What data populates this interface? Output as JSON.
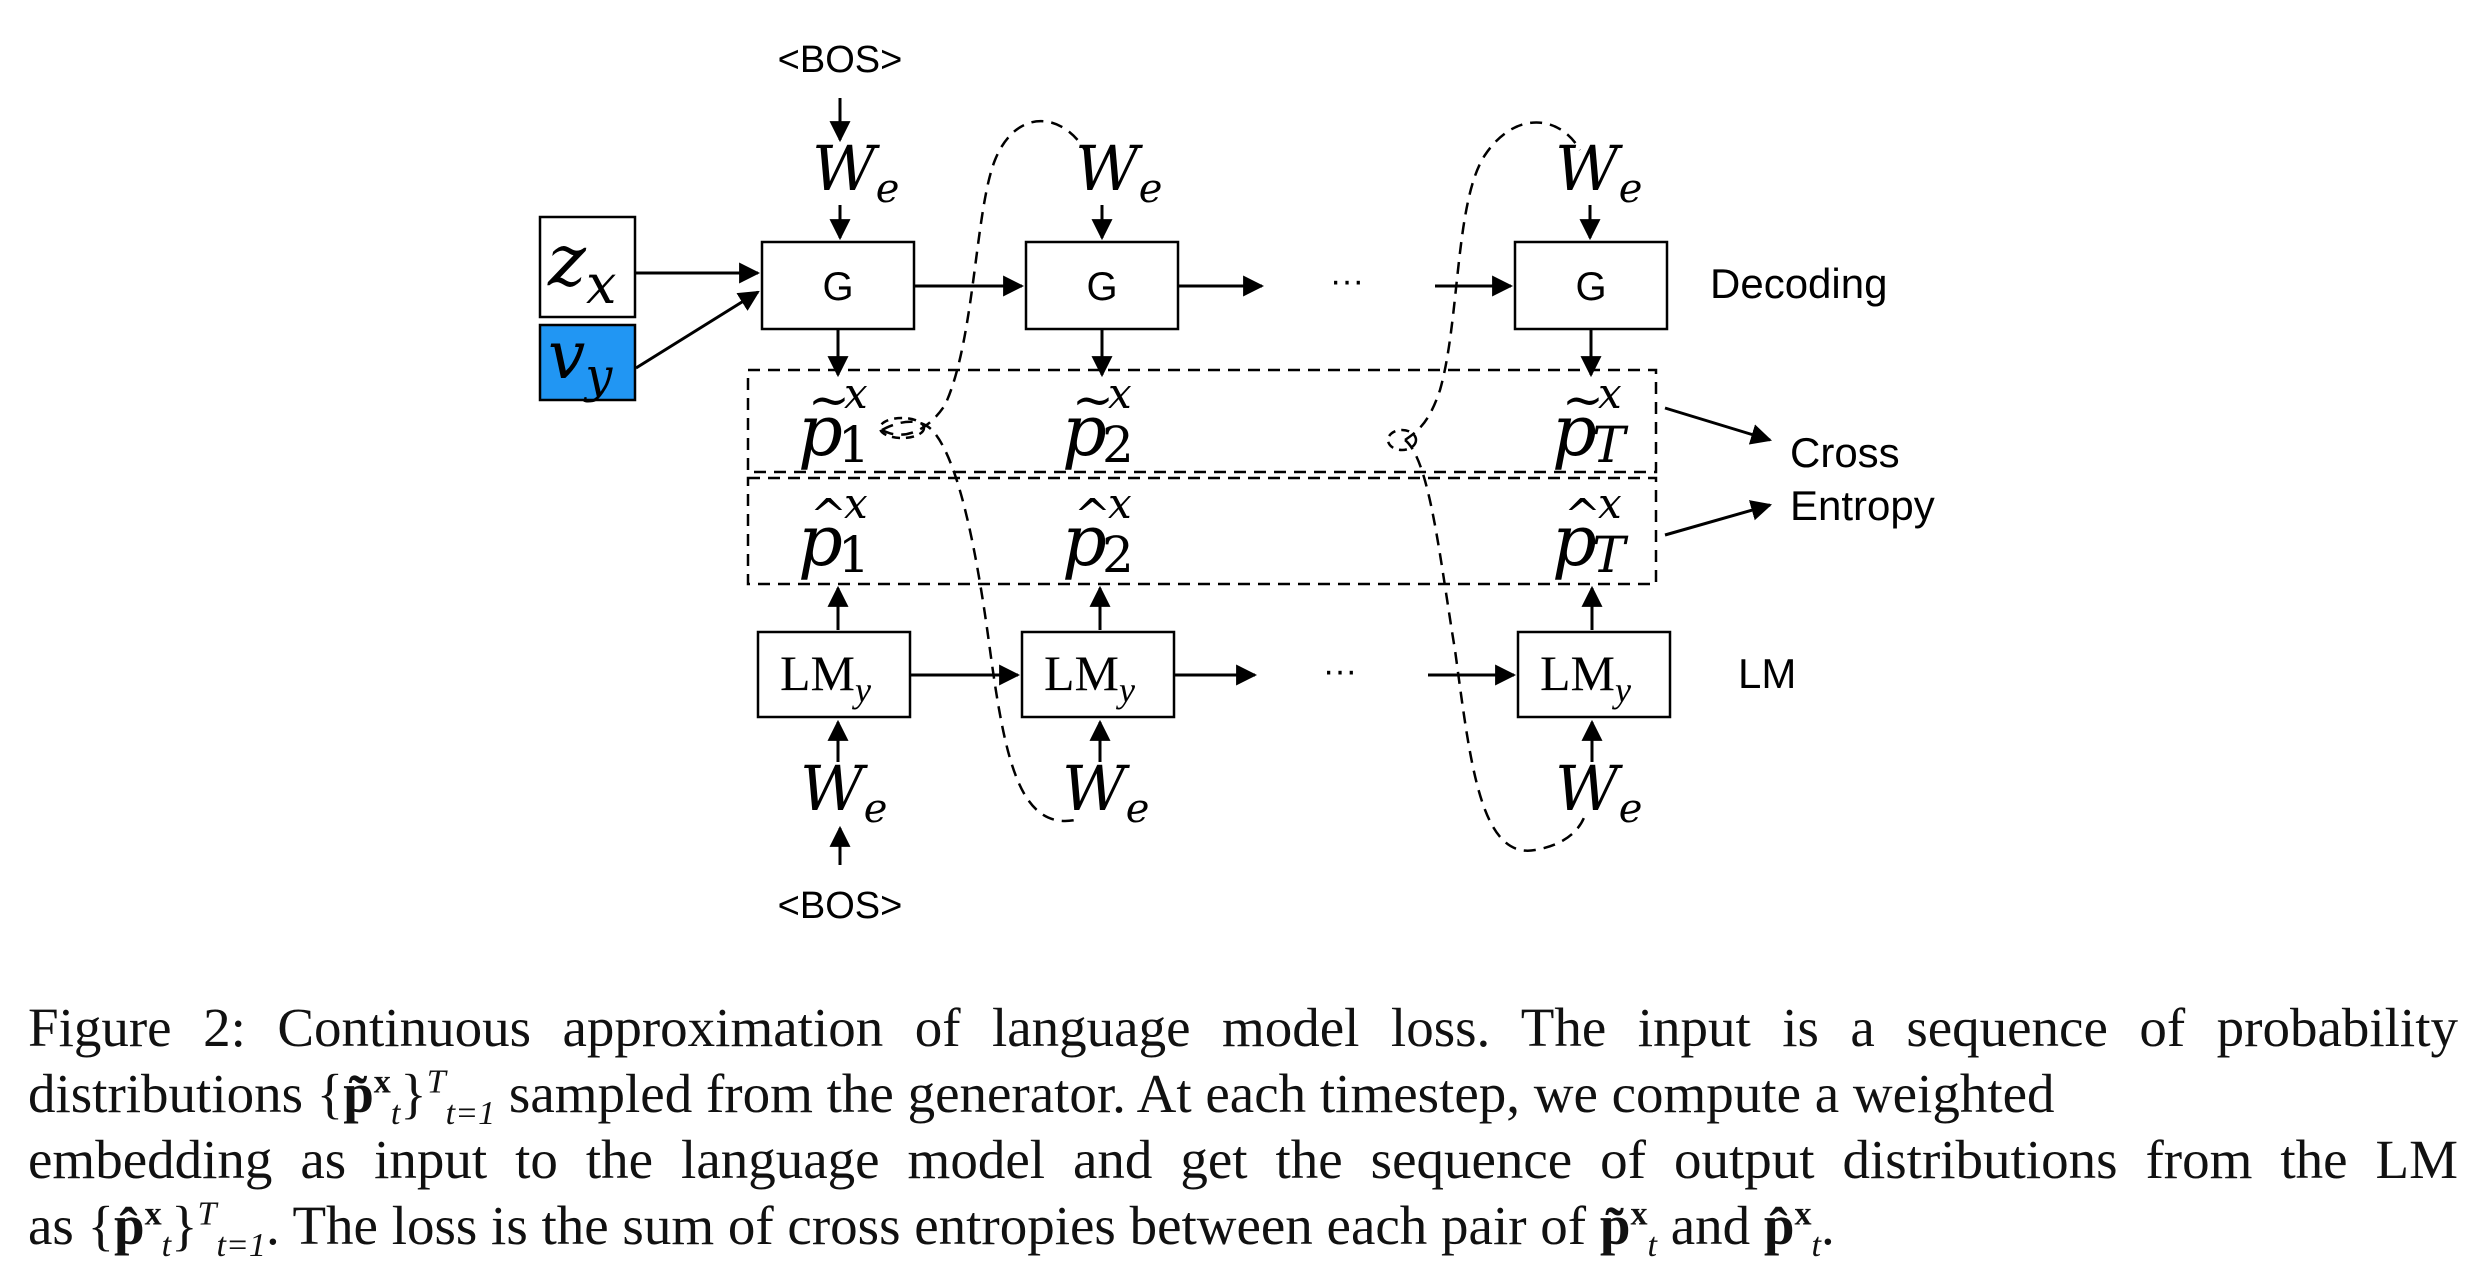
{
  "diagram": {
    "bos_label": "<BOS>",
    "embed_label": "W",
    "embed_sub": "e",
    "generator_label": "G",
    "lm_label": "LM",
    "lm_sub": "y",
    "ellipsis": "···",
    "z_label": "z",
    "z_sub": "x",
    "v_label": "v",
    "v_sub": "y",
    "p_tilde": [
      "1",
      "2",
      "T"
    ],
    "p_hat": [
      "1",
      "2",
      "T"
    ],
    "p_super": "x",
    "decoding_label": "Decoding",
    "cross_entropy_label_1": "Cross",
    "cross_entropy_label_2": "Entropy",
    "lm_side_label": "LM",
    "colors": {
      "v_box": "#2196f3",
      "stroke": "#000000"
    }
  },
  "caption": {
    "l1": "Figure 2: Continuous approximation of language model loss. The input is a sequence of probability",
    "l2_a": "distributions {",
    "l2_b": "p̃",
    "l2_c": "}",
    "l2_sup": "T",
    "l2_sub": "t=1",
    "l2_d": " sampled from the generator.  At each timestep, we compute a weighted",
    "l3": "embedding as input to the language model and get the sequence of output distributions from the LM",
    "l4_a": "as {",
    "l4_b": "p̂",
    "l4_c": "}",
    "l4_sup": "T",
    "l4_sub": "t=1",
    "l4_d": ". The loss is the sum of cross entropies between each pair of ",
    "l4_e": "p̃",
    "l4_f": " and ",
    "l4_g": "p̂",
    "l4_h": ".",
    "bold_x": "x",
    "t": "t"
  }
}
